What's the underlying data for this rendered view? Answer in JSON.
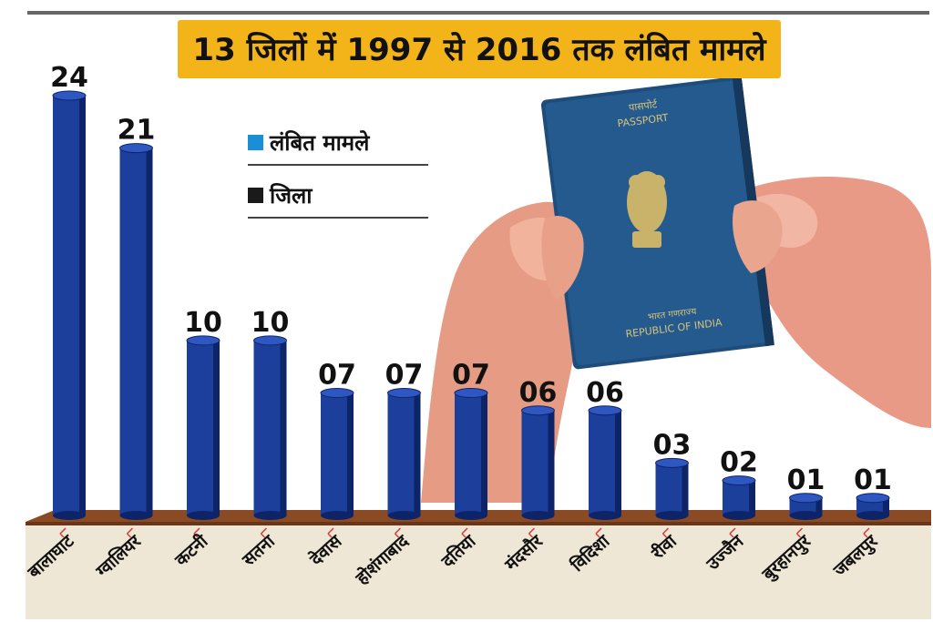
{
  "chart_data": {
    "type": "bar",
    "title": "13 जिलों में 1997 से 2016 तक लंबित मामले",
    "categories": [
      "बालाघाट",
      "ग्वालियर",
      "कटनी",
      "सतना",
      "देवास",
      "होशंगाबाद",
      "दतिया",
      "मंदसौर",
      "विदिशा",
      "रीवा",
      "उज्जैन",
      "बुरहानपुर",
      "जबलपुर"
    ],
    "value_labels": [
      "24",
      "21",
      "10",
      "10",
      "07",
      "07",
      "07",
      "06",
      "06",
      "03",
      "02",
      "01",
      "01"
    ],
    "series": [
      {
        "name": "लंबित मामले",
        "values": [
          24,
          21,
          10,
          10,
          7,
          7,
          7,
          6,
          6,
          3,
          2,
          1,
          1
        ]
      }
    ],
    "legend": [
      {
        "label": "लंबित मामले",
        "color": "#1a8fd8"
      },
      {
        "label": "जिला",
        "color": "#1a1a1a"
      }
    ],
    "ylim": [
      0,
      24
    ],
    "grid": false,
    "legend_position": "top-left"
  },
  "colors": {
    "bar": "#1c3f9c",
    "bar_dark": "#0d2468",
    "base": "#8a4a23",
    "title_bg": "#f2b418",
    "floor": "#efe7d6"
  },
  "images": {
    "passport": "passport-in-hands"
  }
}
